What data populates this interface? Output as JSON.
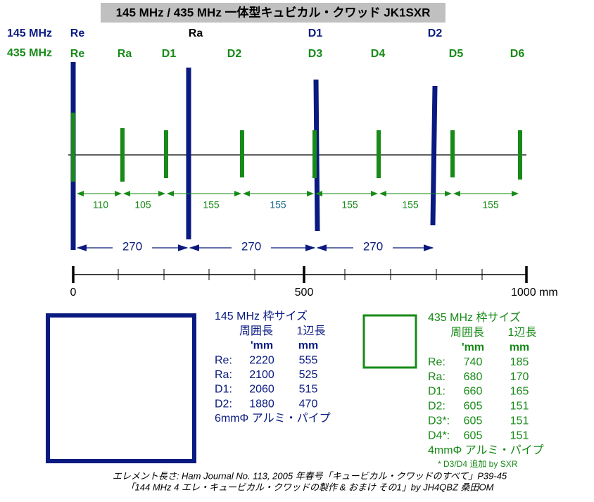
{
  "header": {
    "title": "145 MHz / 435 MHz  一体型キュビカル・クワッド JK1SXR"
  },
  "bands": [
    {
      "label": "145 MHz",
      "elements": [
        "Re",
        "Ra",
        "D1",
        "D2"
      ]
    },
    {
      "label": "435 MHz",
      "elements": [
        "Re",
        "Ra",
        "D1",
        "D2",
        "D3",
        "D4",
        "D5",
        "D6"
      ]
    }
  ],
  "spacing_435": [
    110,
    105,
    155,
    155,
    155,
    155,
    155
  ],
  "spacing_145": [
    270,
    270,
    270
  ],
  "scale": {
    "labels": [
      0,
      500,
      "1000 mm"
    ]
  },
  "table_145": {
    "title": "145 MHz 枠サイズ",
    "header1": [
      "周囲長",
      "1辺長"
    ],
    "header2": [
      "'mm",
      "mm"
    ],
    "rows": [
      [
        "Re:",
        2220,
        555
      ],
      [
        "Ra:",
        2100,
        525
      ],
      [
        "D1:",
        2060,
        515
      ],
      [
        "D2:",
        1880,
        470
      ]
    ],
    "note": "6mmΦ アルミ・パイプ"
  },
  "table_435": {
    "title": "435 MHz 枠サイズ",
    "header1": [
      "周囲長",
      "1辺長"
    ],
    "header2": [
      "'mm",
      "mm"
    ],
    "rows": [
      [
        "Re:",
        740,
        185
      ],
      [
        "Ra:",
        680,
        170
      ],
      [
        "D1:",
        660,
        165
      ],
      [
        "D2:",
        605,
        151
      ],
      [
        "D3*:",
        605,
        151
      ],
      [
        "D4*:",
        605,
        151
      ]
    ],
    "note": "4mmΦ アルミ・パイプ",
    "footnote": "* D3/D4 追加 by SXR"
  },
  "footer": [
    "エレメント長さ:  Ham Journal No. 113, 2005 年春号「キュービカル・クワッドのすべて」P39-45",
    "「144 MHz 4 エレ・キュービカル・クワッドの製作 & おまけ その1」by JH4QBZ  桑田OM"
  ]
}
